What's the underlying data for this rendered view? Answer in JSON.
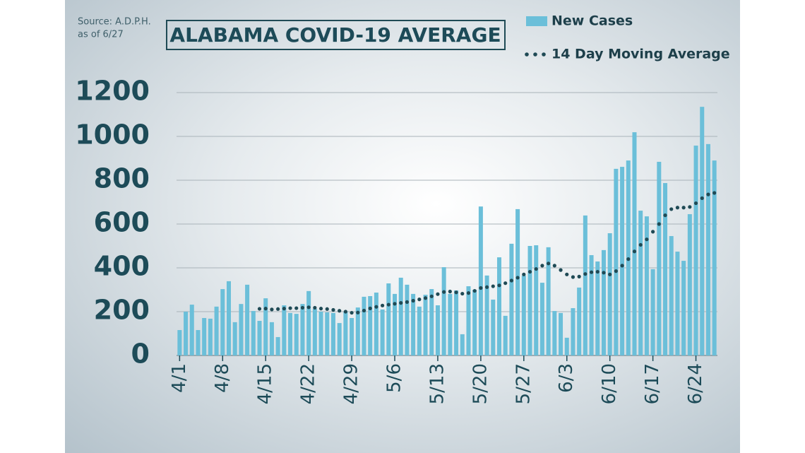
{
  "chart_data": {
    "type": "bar",
    "title": "ALABAMA COVID-19 AVERAGE",
    "source": [
      "Source: A.D.P.H.",
      "as of 6/27"
    ],
    "categories": [
      "4/1",
      null,
      null,
      null,
      null,
      null,
      null,
      "4/8",
      null,
      null,
      null,
      null,
      null,
      null,
      "4/15",
      null,
      null,
      null,
      null,
      null,
      null,
      "4/22",
      null,
      null,
      null,
      null,
      null,
      null,
      "4/29",
      null,
      null,
      null,
      null,
      null,
      null,
      "5/6",
      null,
      null,
      null,
      null,
      null,
      null,
      "5/13",
      null,
      null,
      null,
      null,
      null,
      null,
      "5/20",
      null,
      null,
      null,
      null,
      null,
      null,
      "5/27",
      null,
      null,
      null,
      null,
      null,
      null,
      "6/3",
      null,
      null,
      null,
      null,
      null,
      null,
      "6/10",
      null,
      null,
      null,
      null,
      null,
      null,
      "6/17",
      null,
      null,
      null,
      null,
      null,
      null,
      "6/24",
      null,
      null,
      null
    ],
    "series": [
      {
        "name": "New Cases",
        "color": "#6bbfd9",
        "style": "bar",
        "values": [
          116,
          200,
          232,
          116,
          171,
          168,
          223,
          303,
          339,
          152,
          235,
          323,
          203,
          158,
          261,
          152,
          84,
          229,
          194,
          190,
          235,
          294,
          213,
          200,
          197,
          194,
          148,
          200,
          171,
          219,
          268,
          271,
          287,
          210,
          329,
          281,
          355,
          323,
          281,
          223,
          277,
          303,
          229,
          403,
          281,
          297,
          97,
          316,
          300,
          680,
          365,
          255,
          448,
          181,
          510,
          668,
          365,
          500,
          503,
          332,
          494,
          203,
          194,
          81,
          216,
          310,
          639,
          458,
          429,
          481,
          558,
          852,
          861,
          890,
          1019,
          661,
          635,
          394,
          884,
          787,
          545,
          474,
          432,
          645,
          958,
          1135,
          965,
          890
        ]
      },
      {
        "name": "14 Day Moving Average",
        "color": "#1f4a55",
        "style": "dots",
        "values": [
          null,
          null,
          null,
          null,
          null,
          null,
          null,
          null,
          null,
          null,
          null,
          null,
          null,
          213,
          214,
          210,
          212,
          214,
          216,
          216,
          218,
          220,
          218,
          214,
          212,
          208,
          204,
          200,
          195,
          196,
          205,
          215,
          222,
          228,
          232,
          236,
          240,
          244,
          250,
          256,
          262,
          270,
          280,
          290,
          292,
          288,
          282,
          285,
          295,
          308,
          312,
          316,
          320,
          330,
          342,
          355,
          370,
          382,
          395,
          410,
          420,
          410,
          390,
          370,
          358,
          360,
          372,
          380,
          382,
          378,
          370,
          385,
          410,
          440,
          475,
          505,
          530,
          565,
          600,
          640,
          668,
          675,
          675,
          678,
          695,
          718,
          735,
          742
        ]
      }
    ],
    "ylim": [
      0,
      1200
    ],
    "yticks": [
      0,
      200,
      400,
      600,
      800,
      1000,
      1200
    ],
    "grid": true
  }
}
